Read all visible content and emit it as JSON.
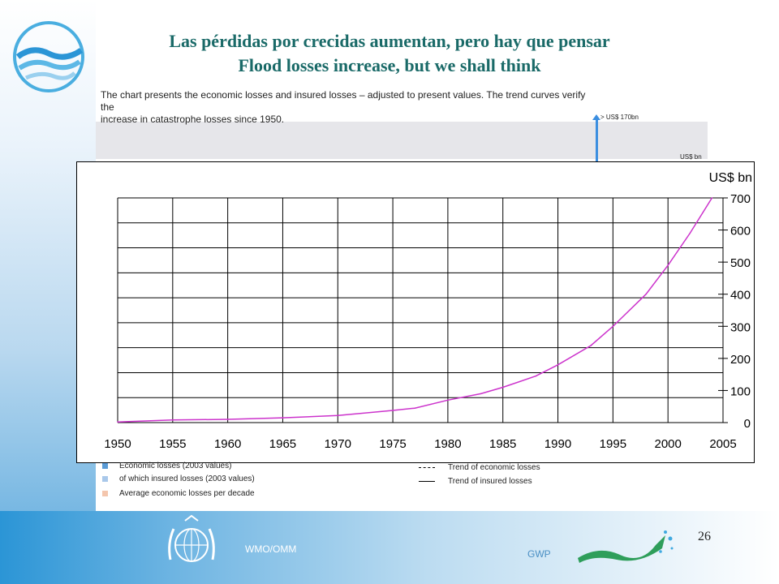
{
  "slide": {
    "title_es": "Las pérdidas por crecidas aumentan, pero hay que pensar",
    "title_en": "Flood losses increase, but we shall think",
    "page_number": "26",
    "footer_left": "WMO/OMM",
    "footer_right": "GWP"
  },
  "scan": {
    "description_lines": [
      "The chart presents the economic losses and insured losses – adjusted to present values. The trend curves verify the",
      "increase in catastrophe losses since 1950."
    ],
    "pointer_label": "> US$ 170bn",
    "unit_label": "US$ bn",
    "legend": [
      {
        "label": "Economic losses (2003 values)",
        "color": "#5b9bd5",
        "kind": "swatch"
      },
      {
        "label": "of which insured losses (2003 values)",
        "color": "#a9c8ea",
        "kind": "swatch"
      },
      {
        "label": "Average economic losses per decade",
        "color": "#f4c6ad",
        "kind": "swatch"
      },
      {
        "label": "Trend of economic losses",
        "kind": "dashed"
      },
      {
        "label": "Trend of insured losses",
        "kind": "solid"
      }
    ]
  },
  "colors": {
    "title": "#1a6a68",
    "curve": "#cc33cc",
    "accent_blue": "#2b95d6"
  },
  "chart_data": {
    "type": "line",
    "ylabel": "US$ bn",
    "xlim": [
      1950,
      2005
    ],
    "ylim": [
      0,
      700
    ],
    "x_ticks": [
      1950,
      1955,
      1960,
      1965,
      1970,
      1975,
      1980,
      1985,
      1990,
      1995,
      2000,
      2005
    ],
    "y_ticks": [
      0,
      100,
      200,
      300,
      400,
      500,
      600,
      700
    ],
    "grid": true,
    "series": [
      {
        "x": [
          1950,
          1955,
          1960,
          1965,
          1970,
          1975,
          1977,
          1980,
          1983,
          1985,
          1988,
          1990,
          1993,
          1995,
          1998,
          2000,
          2002,
          2004
        ],
        "y": [
          2,
          8,
          10,
          15,
          22,
          38,
          45,
          70,
          90,
          110,
          145,
          180,
          240,
          300,
          400,
          490,
          590,
          700
        ]
      }
    ]
  }
}
